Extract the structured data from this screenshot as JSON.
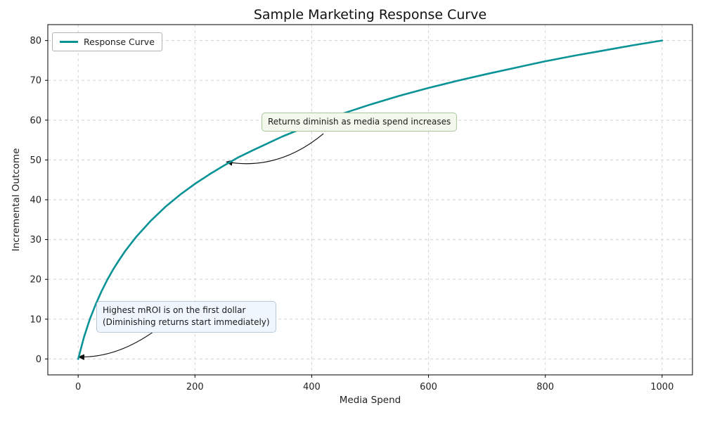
{
  "chart_data": {
    "type": "line",
    "title": "Sample Marketing Response Curve",
    "xlabel": "Media Spend",
    "ylabel": "Incremental Outcome",
    "xlim": [
      -52,
      1052
    ],
    "ylim": [
      -4,
      84
    ],
    "x_ticks": [
      0,
      200,
      400,
      600,
      800,
      1000
    ],
    "y_ticks": [
      0,
      10,
      20,
      30,
      40,
      50,
      60,
      70,
      80
    ],
    "grid": {
      "show": true,
      "style": "dashed",
      "color": "#d4d4d4"
    },
    "legend": {
      "position": "upper-left",
      "entries": [
        {
          "label": "Response Curve",
          "color": "#0a9396"
        }
      ]
    },
    "series": [
      {
        "name": "Response Curve",
        "color": "#0a9396",
        "width": 2.6,
        "points": [
          [
            0,
            0
          ],
          [
            10,
            5.5
          ],
          [
            20,
            10.0
          ],
          [
            30,
            13.7
          ],
          [
            40,
            17.0
          ],
          [
            50,
            19.9
          ],
          [
            60,
            22.5
          ],
          [
            70,
            24.8
          ],
          [
            80,
            27.0
          ],
          [
            90,
            28.9
          ],
          [
            100,
            30.8
          ],
          [
            125,
            34.8
          ],
          [
            150,
            38.3
          ],
          [
            175,
            41.3
          ],
          [
            200,
            44.0
          ],
          [
            225,
            46.4
          ],
          [
            250,
            48.6
          ],
          [
            275,
            50.7
          ],
          [
            300,
            52.5
          ],
          [
            350,
            55.9
          ],
          [
            400,
            58.9
          ],
          [
            450,
            61.5
          ],
          [
            500,
            63.9
          ],
          [
            550,
            66.1
          ],
          [
            600,
            68.1
          ],
          [
            650,
            69.9
          ],
          [
            700,
            71.6
          ],
          [
            750,
            73.2
          ],
          [
            800,
            74.8
          ],
          [
            850,
            76.2
          ],
          [
            900,
            77.5
          ],
          [
            950,
            78.8
          ],
          [
            1000,
            80.0
          ]
        ]
      }
    ],
    "annotations": [
      {
        "text": "Returns diminish as media spend increases",
        "xy": [
          254,
          49.5
        ],
        "xytext": [
          314,
          62
        ],
        "arrow_tail": [
          420,
          56.6
        ],
        "curve_offset": [
          5,
          33
        ],
        "box_fill": "#f2f9ec",
        "box_border": "#a8c79a"
      },
      {
        "text": "Highest mROI is on the first dollar\n(Diminishing returns start immediately)",
        "xy": [
          0.5,
          0.5
        ],
        "xytext": [
          31,
          14.5
        ],
        "arrow_tail": [
          137,
          7.7
        ],
        "curve_offset": [
          0,
          22
        ],
        "box_fill": "#eff6fd",
        "box_border": "#b9c9d9"
      }
    ]
  }
}
